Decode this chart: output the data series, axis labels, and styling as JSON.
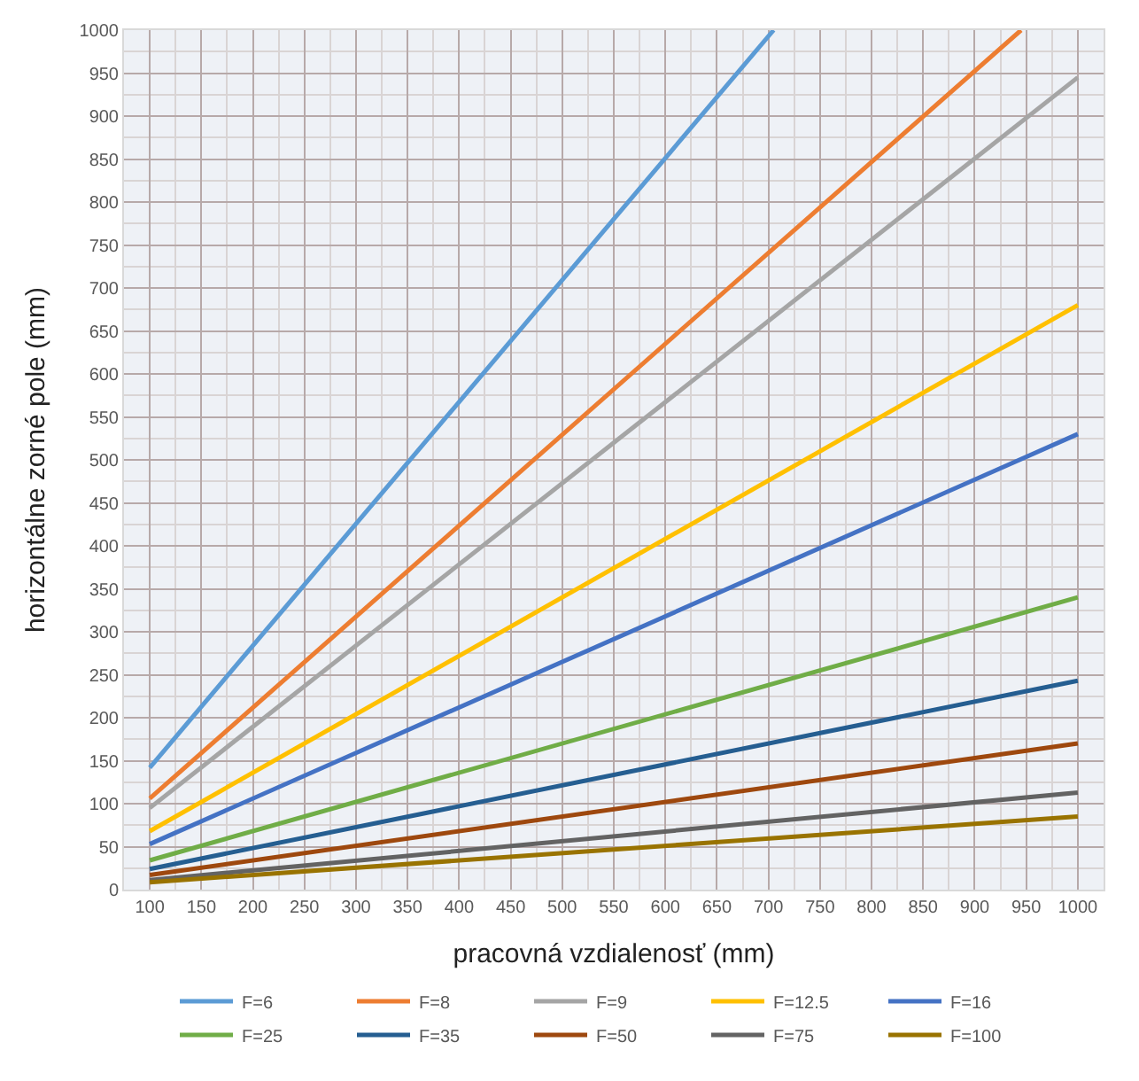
{
  "chart_data": {
    "type": "line",
    "xlabel": "pracovná vzdialenosť (mm)",
    "ylabel": "horizontálne zorné pole (mm)",
    "xlim": [
      75,
      1025
    ],
    "xticks": [
      100,
      150,
      200,
      250,
      300,
      350,
      400,
      450,
      500,
      550,
      600,
      650,
      700,
      750,
      800,
      850,
      900,
      950,
      1000
    ],
    "ylim": [
      0,
      1000
    ],
    "yticks": [
      0,
      50,
      100,
      150,
      200,
      250,
      300,
      350,
      400,
      450,
      500,
      550,
      600,
      650,
      700,
      750,
      800,
      850,
      900,
      950,
      1000
    ],
    "grid": true,
    "legend": "bottom",
    "marker": "none",
    "line_style": "solid",
    "series": [
      {
        "name": "F=6",
        "color": "#5b9bd5",
        "x": [
          100,
          705
        ],
        "values": [
          142,
          1000
        ]
      },
      {
        "name": "F=8",
        "color": "#ed7d31",
        "x": [
          100,
          945
        ],
        "values": [
          106,
          1000
        ]
      },
      {
        "name": "F=9",
        "color": "#a5a5a5",
        "x": [
          100,
          1000
        ],
        "values": [
          95,
          945
        ]
      },
      {
        "name": "F=12.5",
        "color": "#ffc000",
        "x": [
          100,
          1000
        ],
        "values": [
          68,
          680
        ]
      },
      {
        "name": "F=16",
        "color": "#4472c4",
        "x": [
          100,
          1000
        ],
        "values": [
          53,
          530
        ]
      },
      {
        "name": "F=25",
        "color": "#70ad47",
        "x": [
          100,
          1000
        ],
        "values": [
          34,
          340
        ]
      },
      {
        "name": "F=35",
        "color": "#255e91",
        "x": [
          100,
          1000
        ],
        "values": [
          24,
          243
        ]
      },
      {
        "name": "F=50",
        "color": "#9e480e",
        "x": [
          100,
          1000
        ],
        "values": [
          17,
          170
        ]
      },
      {
        "name": "F=75",
        "color": "#636363",
        "x": [
          100,
          1000
        ],
        "values": [
          11,
          113
        ]
      },
      {
        "name": "F=100",
        "color": "#997300",
        "x": [
          100,
          1000
        ],
        "values": [
          8.5,
          85
        ]
      }
    ]
  }
}
